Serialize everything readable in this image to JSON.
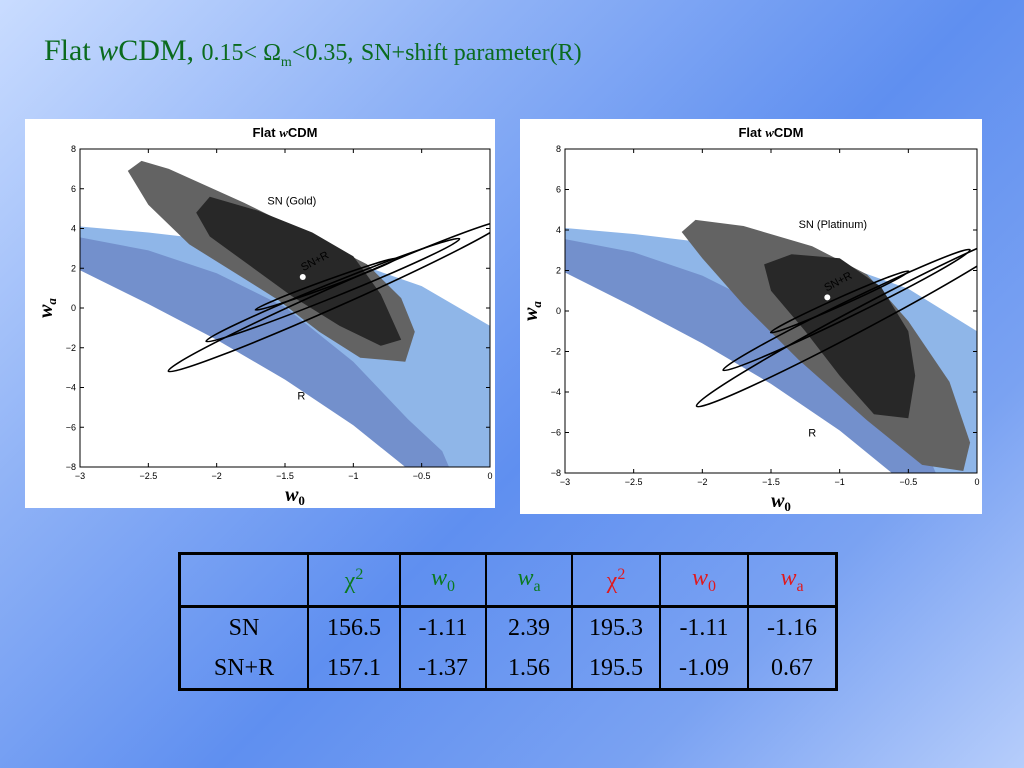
{
  "title": {
    "model_plain": "Flat ",
    "model_italic": "w",
    "model_rest": "CDM,",
    "range_prefix": "0.15< Ω",
    "range_sub": "m",
    "range_suffix": "<0.35,",
    "probes": "SN+shift parameter(R)"
  },
  "chart_data": [
    {
      "type": "contour",
      "title_prefix": "Flat ",
      "title_italic": "w",
      "title_suffix": "CDM",
      "xlabel": "w",
      "xlabel_sub": "0",
      "ylabel": "w",
      "ylabel_sub": "a",
      "xlim": [
        -3,
        0
      ],
      "ylim": [
        -8,
        8
      ],
      "xticks": [
        -3,
        -2.5,
        -2,
        -1.5,
        -1,
        -0.5,
        0
      ],
      "xtick_labels": [
        "−3",
        "−2.5",
        "−2",
        "−1.5",
        "−1",
        "−0.5",
        "0"
      ],
      "yticks": [
        -8,
        -6,
        -4,
        -2,
        0,
        2,
        4,
        6,
        8
      ],
      "ytick_labels": [
        "−8",
        "−6",
        "−4",
        "−2",
        "0",
        "2",
        "4",
        "6",
        "8"
      ],
      "region_labels": [
        {
          "text": "SN (Gold)",
          "x": -1.45,
          "y": 5.2
        },
        {
          "text": "SN+R",
          "x": -1.27,
          "y": 2.2,
          "angle": -28
        },
        {
          "text": "R",
          "x": -1.38,
          "y": -4.6
        }
      ],
      "best_fit": {
        "x": -1.37,
        "y": 1.56
      },
      "colors": {
        "r_outer": "#8fb6e8",
        "r_inner": "#7390cc",
        "sn_outer": "#636363",
        "sn_inner": "#282828",
        "combined": "#000000",
        "point": "#ffffff"
      },
      "regions": {
        "r_outer": [
          [
            -3,
            4.1
          ],
          [
            -2.5,
            3.8
          ],
          [
            -2,
            3.4
          ],
          [
            -1.5,
            2.9
          ],
          [
            -1,
            2.3
          ],
          [
            -0.5,
            1.1
          ],
          [
            0,
            -0.9
          ],
          [
            0,
            -8
          ],
          [
            -0.45,
            -8
          ],
          [
            -1,
            -5.6
          ],
          [
            -1.5,
            -3.4
          ],
          [
            -2,
            -1.4
          ],
          [
            -2.5,
            0.4
          ],
          [
            -3,
            2.1
          ]
        ],
        "r_inner": [
          [
            -3,
            3.55
          ],
          [
            -2.5,
            2.9
          ],
          [
            -2,
            1.75
          ],
          [
            -1.5,
            0.05
          ],
          [
            -1,
            -2.7
          ],
          [
            -0.6,
            -5.6
          ],
          [
            -0.35,
            -7.2
          ],
          [
            -0.3,
            -8
          ],
          [
            -0.62,
            -8
          ],
          [
            -1,
            -5.9
          ],
          [
            -1.5,
            -3.6
          ],
          [
            -2,
            -1.6
          ],
          [
            -2.5,
            0.2
          ],
          [
            -3,
            1.9
          ]
        ],
        "sn_outer": [
          [
            -2.55,
            7.4
          ],
          [
            -2.35,
            7.0
          ],
          [
            -1.8,
            5.3
          ],
          [
            -1.3,
            3.6
          ],
          [
            -0.9,
            2.2
          ],
          [
            -0.65,
            0.5
          ],
          [
            -0.55,
            -1.2
          ],
          [
            -0.62,
            -2.7
          ],
          [
            -0.95,
            -2.5
          ],
          [
            -1.25,
            -1.2
          ],
          [
            -1.55,
            0.4
          ],
          [
            -1.85,
            1.7
          ],
          [
            -2.2,
            3.2
          ],
          [
            -2.5,
            5.2
          ],
          [
            -2.65,
            6.9
          ]
        ],
        "sn_inner": [
          [
            -2.05,
            5.6
          ],
          [
            -1.7,
            4.9
          ],
          [
            -1.3,
            3.8
          ],
          [
            -1,
            2.6
          ],
          [
            -0.8,
            0.7
          ],
          [
            -0.65,
            -1.6
          ],
          [
            -0.8,
            -1.9
          ],
          [
            -1.1,
            -0.9
          ],
          [
            -1.45,
            0.6
          ],
          [
            -1.75,
            2.1
          ],
          [
            -2.05,
            3.6
          ],
          [
            -2.15,
            4.8
          ]
        ],
        "combined_ellipses": [
          {
            "cx": -1.12,
            "cy": 0.6,
            "rx": 1.35,
            "ry": 0.5,
            "angle": -24
          },
          {
            "cx": -1.15,
            "cy": 0.9,
            "rx": 1.0,
            "ry": 0.35,
            "angle": -22
          },
          {
            "cx": -1.2,
            "cy": 1.2,
            "rx": 0.55,
            "ry": 0.18,
            "angle": -20
          }
        ]
      }
    },
    {
      "type": "contour",
      "title_prefix": "Flat ",
      "title_italic": "w",
      "title_suffix": "CDM",
      "xlabel": "w",
      "xlabel_sub": "0",
      "ylabel": "w",
      "ylabel_sub": "a",
      "xlim": [
        -3,
        0
      ],
      "ylim": [
        -8,
        8
      ],
      "xticks": [
        -3,
        -2.5,
        -2,
        -1.5,
        -1,
        -0.5,
        0
      ],
      "xtick_labels": [
        "−3",
        "−2.5",
        "−2",
        "−1.5",
        "−1",
        "−0.5",
        "0"
      ],
      "yticks": [
        -8,
        -6,
        -4,
        -2,
        0,
        2,
        4,
        6,
        8
      ],
      "ytick_labels": [
        "−8",
        "−6",
        "−4",
        "−2",
        "0",
        "2",
        "4",
        "6",
        "8"
      ],
      "region_labels": [
        {
          "text": "SN (Platinum)",
          "x": -1.05,
          "y": 4.1
        },
        {
          "text": "SN+R",
          "x": -1.0,
          "y": 1.3,
          "angle": -28
        },
        {
          "text": "R",
          "x": -1.2,
          "y": -6.2
        }
      ],
      "best_fit": {
        "x": -1.09,
        "y": 0.67
      },
      "colors": {
        "r_outer": "#8fb6e8",
        "r_inner": "#7390cc",
        "sn_outer": "#636363",
        "sn_inner": "#282828",
        "combined": "#000000",
        "point": "#ffffff"
      },
      "regions": {
        "r_outer": [
          [
            -3,
            4.1
          ],
          [
            -2.5,
            3.8
          ],
          [
            -2,
            3.4
          ],
          [
            -1.5,
            2.9
          ],
          [
            -1,
            2.3
          ],
          [
            -0.5,
            1.1
          ],
          [
            0,
            -1.0
          ],
          [
            0,
            -8
          ],
          [
            -0.45,
            -8
          ],
          [
            -1,
            -5.6
          ],
          [
            -1.5,
            -3.4
          ],
          [
            -2,
            -1.4
          ],
          [
            -2.5,
            0.4
          ],
          [
            -3,
            2.1
          ]
        ],
        "r_inner": [
          [
            -3,
            3.55
          ],
          [
            -2.5,
            2.9
          ],
          [
            -2,
            1.75
          ],
          [
            -1.5,
            0.05
          ],
          [
            -1,
            -2.7
          ],
          [
            -0.6,
            -5.6
          ],
          [
            -0.35,
            -7.2
          ],
          [
            -0.3,
            -8
          ],
          [
            -0.62,
            -8
          ],
          [
            -1,
            -5.9
          ],
          [
            -1.5,
            -3.6
          ],
          [
            -2,
            -1.6
          ],
          [
            -2.5,
            0.2
          ],
          [
            -3,
            1.9
          ]
        ],
        "sn_outer": [
          [
            -2.05,
            4.5
          ],
          [
            -1.7,
            4.2
          ],
          [
            -1.2,
            3.2
          ],
          [
            -0.8,
            1.8
          ],
          [
            -0.5,
            -0.5
          ],
          [
            -0.2,
            -3.5
          ],
          [
            -0.05,
            -6.5
          ],
          [
            -0.1,
            -7.9
          ],
          [
            -0.4,
            -7.6
          ],
          [
            -0.8,
            -5.4
          ],
          [
            -1.3,
            -2.4
          ],
          [
            -1.7,
            0.3
          ],
          [
            -2.0,
            2.6
          ],
          [
            -2.15,
            3.9
          ]
        ],
        "sn_inner": [
          [
            -1.35,
            2.8
          ],
          [
            -1.0,
            2.6
          ],
          [
            -0.7,
            1.2
          ],
          [
            -0.5,
            -1.0
          ],
          [
            -0.45,
            -3.2
          ],
          [
            -0.5,
            -5.3
          ],
          [
            -0.75,
            -5.1
          ],
          [
            -1.0,
            -3.2
          ],
          [
            -1.25,
            -1.0
          ],
          [
            -1.5,
            1.0
          ],
          [
            -1.55,
            2.3
          ]
        ],
        "combined_ellipses": [
          {
            "cx": -0.85,
            "cy": -0.4,
            "rx": 1.35,
            "ry": 0.55,
            "angle": -28
          },
          {
            "cx": -0.95,
            "cy": 0.05,
            "rx": 1.0,
            "ry": 0.38,
            "angle": -26
          },
          {
            "cx": -1.0,
            "cy": 0.45,
            "rx": 0.55,
            "ry": 0.2,
            "angle": -24
          }
        ]
      }
    }
  ],
  "table": {
    "headers": [
      {
        "base": "χ",
        "sup": "2",
        "color": "green",
        "italic": false
      },
      {
        "base": "w",
        "sub": "0",
        "color": "green",
        "italic": true
      },
      {
        "base": "w",
        "sub": "a",
        "color": "green",
        "italic": true
      },
      {
        "base": "χ",
        "sup": "2",
        "color": "red",
        "italic": false
      },
      {
        "base": "w",
        "sub": "0",
        "color": "red",
        "italic": true
      },
      {
        "base": "w",
        "sub": "a",
        "color": "red",
        "italic": true
      }
    ],
    "rows": [
      {
        "label": "SN",
        "values": [
          "156.5",
          "-1.11",
          "2.39",
          "195.3",
          "-1.11",
          "-1.16"
        ]
      },
      {
        "label": "SN+R",
        "values": [
          "157.1",
          "-1.37",
          "1.56",
          "195.5",
          "-1.09",
          "0.67"
        ]
      }
    ]
  }
}
